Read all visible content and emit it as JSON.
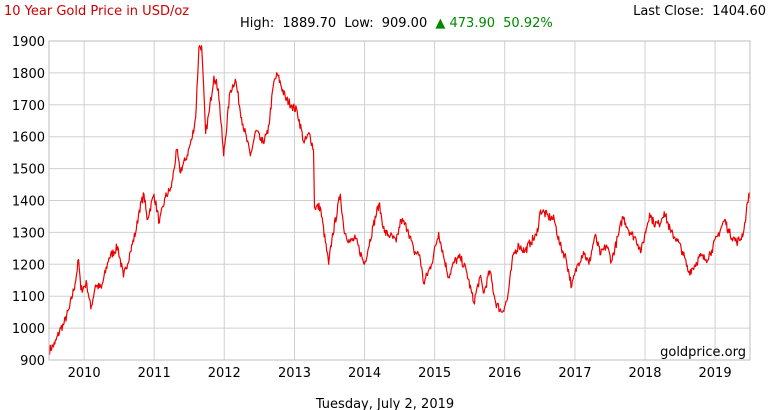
{
  "header": {
    "title": "10 Year Gold Price in USD/oz",
    "high_label": "High:",
    "high_value": "1889.70",
    "low_label": "Low:",
    "low_value": "909.00",
    "change_arrow": "▲",
    "change_value": "473.90",
    "change_percent": "50.92%",
    "last_close_label": "Last Close:",
    "last_close_value": "1404.60"
  },
  "footer": {
    "date": "Tuesday, July 2, 2019",
    "watermark": "goldprice.org"
  },
  "colors": {
    "series": "#ee0000",
    "title": "#cc0000",
    "change": "#008800"
  },
  "chart_data": {
    "type": "line",
    "title": "10 Year Gold Price in USD/oz",
    "xlabel": "",
    "ylabel": "",
    "ylim": [
      900,
      1900
    ],
    "y_ticks": [
      900,
      1000,
      1100,
      1200,
      1300,
      1400,
      1500,
      1600,
      1700,
      1800,
      1900
    ],
    "x_ticks": [
      "2010",
      "2011",
      "2012",
      "2013",
      "2014",
      "2015",
      "2016",
      "2017",
      "2018",
      "2019"
    ],
    "grid": true,
    "series": [
      {
        "values": [
          [
            "2009-07-02",
            930
          ],
          [
            "2009-08-01",
            950
          ],
          [
            "2009-09-01",
            1000
          ],
          [
            "2009-09-15",
            1010
          ],
          [
            "2009-10-15",
            1060
          ],
          [
            "2009-11-15",
            1140
          ],
          [
            "2009-12-03",
            1215
          ],
          [
            "2009-12-15",
            1120
          ],
          [
            "2010-01-15",
            1140
          ],
          [
            "2010-02-05",
            1060
          ],
          [
            "2010-03-01",
            1135
          ],
          [
            "2010-04-01",
            1125
          ],
          [
            "2010-05-10",
            1220
          ],
          [
            "2010-06-25",
            1255
          ],
          [
            "2010-07-25",
            1160
          ],
          [
            "2010-08-30",
            1240
          ],
          [
            "2010-09-30",
            1310
          ],
          [
            "2010-10-15",
            1370
          ],
          [
            "2010-11-09",
            1420
          ],
          [
            "2010-11-25",
            1340
          ],
          [
            "2010-12-31",
            1420
          ],
          [
            "2011-01-28",
            1330
          ],
          [
            "2011-02-28",
            1410
          ],
          [
            "2011-03-31",
            1440
          ],
          [
            "2011-04-29",
            1560
          ],
          [
            "2011-05-15",
            1490
          ],
          [
            "2011-06-15",
            1530
          ],
          [
            "2011-07-15",
            1590
          ],
          [
            "2011-08-05",
            1660
          ],
          [
            "2011-08-22",
            1880
          ],
          [
            "2011-09-05",
            1885
          ],
          [
            "2011-09-26",
            1610
          ],
          [
            "2011-10-15",
            1680
          ],
          [
            "2011-11-08",
            1790
          ],
          [
            "2011-12-01",
            1750
          ],
          [
            "2011-12-29",
            1540
          ],
          [
            "2012-01-31",
            1740
          ],
          [
            "2012-02-28",
            1780
          ],
          [
            "2012-03-31",
            1660
          ],
          [
            "2012-05-16",
            1540
          ],
          [
            "2012-06-15",
            1620
          ],
          [
            "2012-07-15",
            1580
          ],
          [
            "2012-08-15",
            1610
          ],
          [
            "2012-09-15",
            1770
          ],
          [
            "2012-10-04",
            1795
          ],
          [
            "2012-11-15",
            1720
          ],
          [
            "2012-12-15",
            1700
          ],
          [
            "2013-01-15",
            1680
          ],
          [
            "2013-02-20",
            1580
          ],
          [
            "2013-03-20",
            1610
          ],
          [
            "2013-04-10",
            1560
          ],
          [
            "2013-04-15",
            1380
          ],
          [
            "2013-05-15",
            1380
          ],
          [
            "2013-06-28",
            1200
          ],
          [
            "2013-07-15",
            1280
          ],
          [
            "2013-08-28",
            1420
          ],
          [
            "2013-09-15",
            1310
          ],
          [
            "2013-10-15",
            1270
          ],
          [
            "2013-11-15",
            1280
          ],
          [
            "2013-12-31",
            1200
          ],
          [
            "2014-02-15",
            1320
          ],
          [
            "2014-03-17",
            1390
          ],
          [
            "2014-04-15",
            1300
          ],
          [
            "2014-05-15",
            1290
          ],
          [
            "2014-06-15",
            1270
          ],
          [
            "2014-07-10",
            1340
          ],
          [
            "2014-08-15",
            1310
          ],
          [
            "2014-09-15",
            1240
          ],
          [
            "2014-10-15",
            1230
          ],
          [
            "2014-11-05",
            1140
          ],
          [
            "2014-12-15",
            1200
          ],
          [
            "2015-01-22",
            1300
          ],
          [
            "2015-02-15",
            1230
          ],
          [
            "2015-03-15",
            1160
          ],
          [
            "2015-04-15",
            1210
          ],
          [
            "2015-05-15",
            1220
          ],
          [
            "2015-06-15",
            1180
          ],
          [
            "2015-07-24",
            1080
          ],
          [
            "2015-08-25",
            1160
          ],
          [
            "2015-09-15",
            1110
          ],
          [
            "2015-10-15",
            1180
          ],
          [
            "2015-11-15",
            1080
          ],
          [
            "2015-12-17",
            1050
          ],
          [
            "2016-01-15",
            1090
          ],
          [
            "2016-02-15",
            1230
          ],
          [
            "2016-03-15",
            1260
          ],
          [
            "2016-04-15",
            1240
          ],
          [
            "2016-05-15",
            1270
          ],
          [
            "2016-06-15",
            1290
          ],
          [
            "2016-07-06",
            1370
          ],
          [
            "2016-08-15",
            1350
          ],
          [
            "2016-09-15",
            1340
          ],
          [
            "2016-10-15",
            1260
          ],
          [
            "2016-11-15",
            1220
          ],
          [
            "2016-12-15",
            1130
          ],
          [
            "2017-01-15",
            1200
          ],
          [
            "2017-02-15",
            1240
          ],
          [
            "2017-03-15",
            1200
          ],
          [
            "2017-04-15",
            1290
          ],
          [
            "2017-05-15",
            1230
          ],
          [
            "2017-06-15",
            1260
          ],
          [
            "2017-07-10",
            1210
          ],
          [
            "2017-08-15",
            1290
          ],
          [
            "2017-09-08",
            1350
          ],
          [
            "2017-10-15",
            1300
          ],
          [
            "2017-11-15",
            1280
          ],
          [
            "2017-12-12",
            1240
          ],
          [
            "2018-01-25",
            1360
          ],
          [
            "2018-02-15",
            1330
          ],
          [
            "2018-03-15",
            1325
          ],
          [
            "2018-04-11",
            1365
          ],
          [
            "2018-05-15",
            1300
          ],
          [
            "2018-06-15",
            1280
          ],
          [
            "2018-07-15",
            1240
          ],
          [
            "2018-08-16",
            1175
          ],
          [
            "2018-09-15",
            1195
          ],
          [
            "2018-10-15",
            1225
          ],
          [
            "2018-11-15",
            1215
          ],
          [
            "2018-12-15",
            1245
          ],
          [
            "2019-01-15",
            1290
          ],
          [
            "2019-02-20",
            1340
          ],
          [
            "2019-03-15",
            1300
          ],
          [
            "2019-04-23",
            1270
          ],
          [
            "2019-05-15",
            1280
          ],
          [
            "2019-06-01",
            1310
          ],
          [
            "2019-06-20",
            1395
          ],
          [
            "2019-06-25",
            1420
          ],
          [
            "2019-07-02",
            1404.6
          ]
        ]
      }
    ]
  }
}
